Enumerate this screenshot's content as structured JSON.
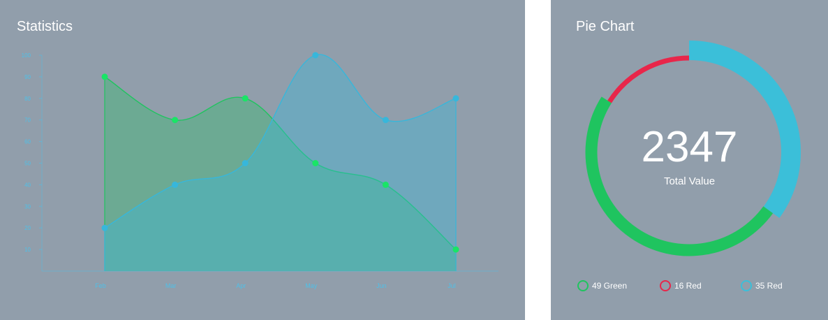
{
  "statistics": {
    "title": "Statistics"
  },
  "pie": {
    "title": "Pie Chart",
    "center_value": "2347",
    "center_label": "Total Value",
    "legend": [
      {
        "label": "49 Green",
        "color": "#1fc45f"
      },
      {
        "label": "16 Red",
        "color": "#e8264a"
      },
      {
        "label": "35 Red",
        "color": "#3bbfd9"
      }
    ]
  },
  "colors": {
    "panel_bg": "#919eab",
    "green": "#1fc45f",
    "green_point": "#19e566",
    "blue": "#37b7db",
    "red": "#e8264a",
    "axis": "#4fc0e8"
  },
  "chart_data": [
    {
      "type": "area",
      "title": "Statistics",
      "categories": [
        "Feb",
        "Mar",
        "Apr",
        "May",
        "Jun",
        "Jul"
      ],
      "ylim": [
        0,
        100
      ],
      "yticks": [
        10,
        20,
        30,
        40,
        50,
        60,
        70,
        80,
        90,
        100
      ],
      "grid": false,
      "series": [
        {
          "color": "#1fc45f",
          "values": [
            90,
            70,
            80,
            50,
            40,
            10
          ]
        },
        {
          "color": "#37b7db",
          "values": [
            20,
            40,
            50,
            100,
            70,
            80
          ]
        }
      ]
    },
    {
      "type": "pie",
      "title": "Pie Chart",
      "style": "donut",
      "slices": [
        {
          "label": "49 Green",
          "value": 49,
          "color": "#1fc45f"
        },
        {
          "label": "16 Red",
          "value": 16,
          "color": "#e8264a"
        },
        {
          "label": "35 Red",
          "value": 35,
          "color": "#3bbfd9"
        }
      ]
    }
  ]
}
